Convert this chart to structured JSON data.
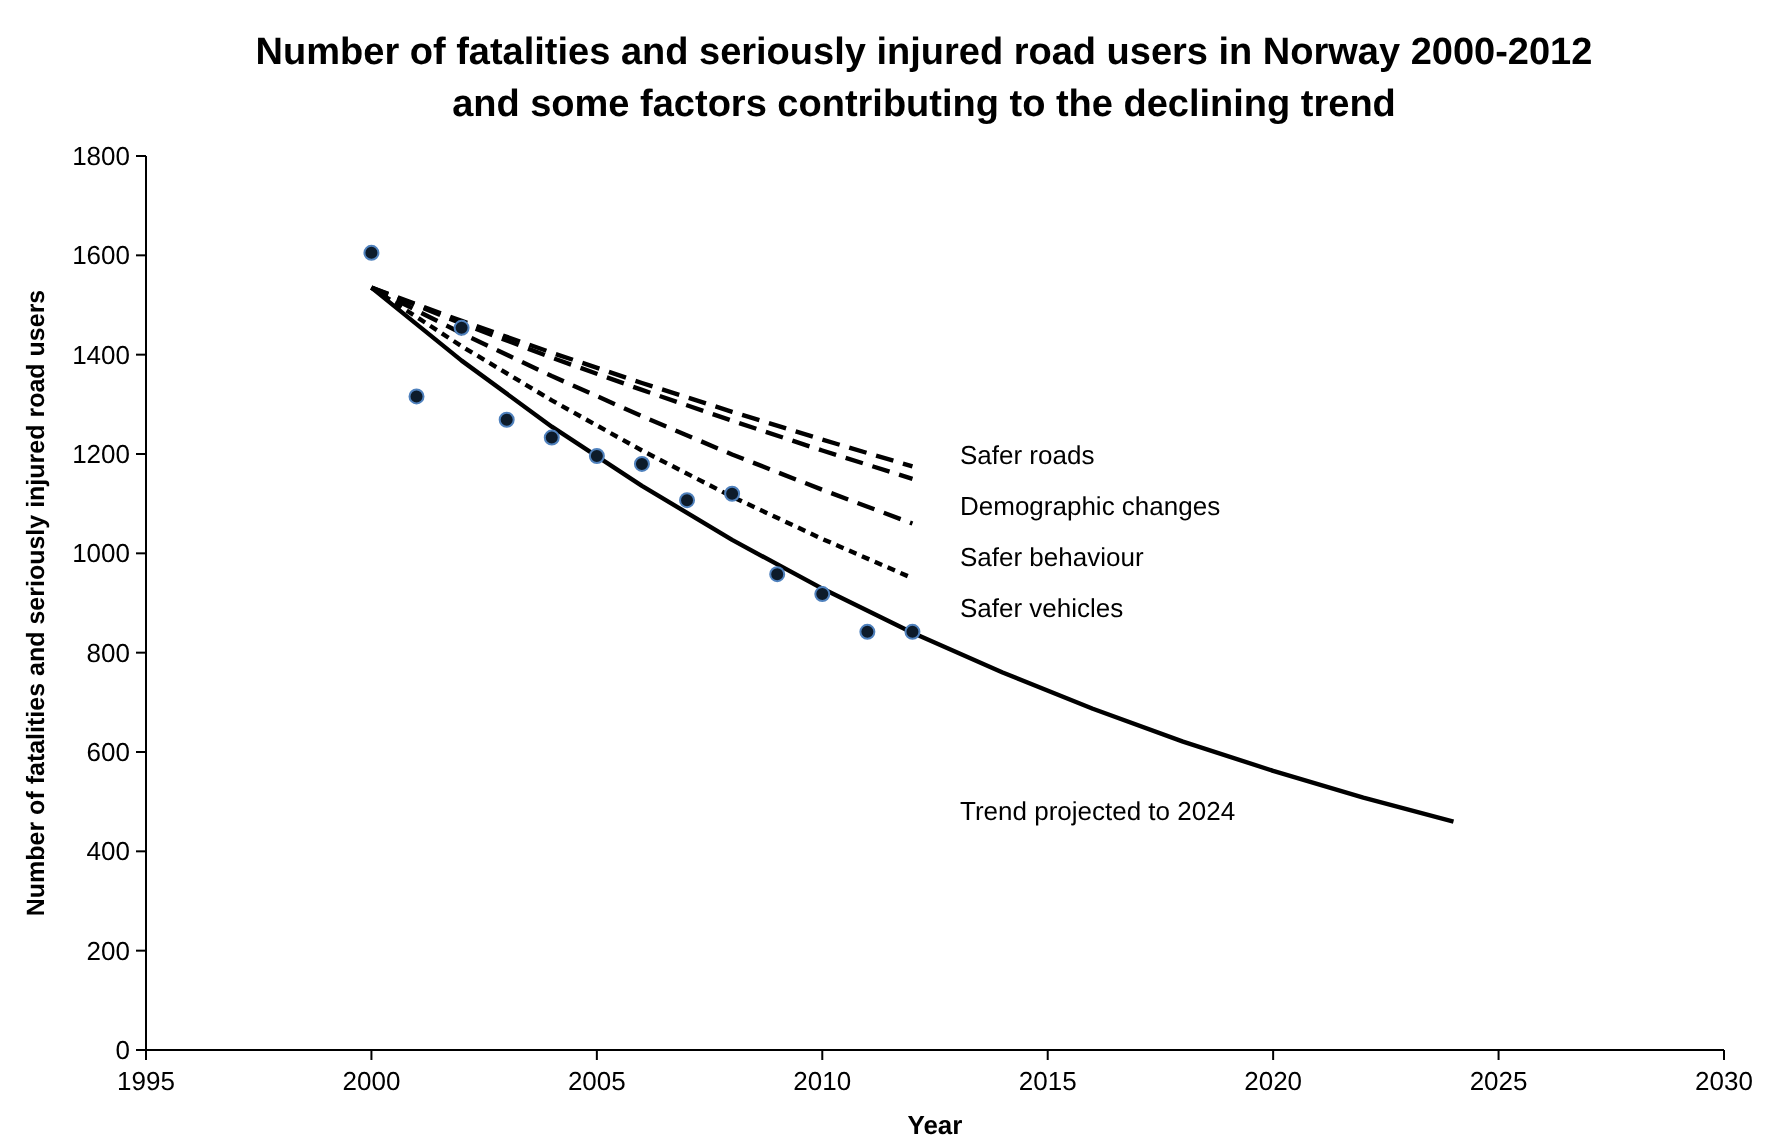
{
  "chart_data": {
    "type": "line",
    "title": "Number of fatalities and seriously injured road users in Norway 2000-2012\nand some factors contributing to the declining trend",
    "xlabel": "Year",
    "ylabel": "Number of fatalities and seriously injured road users",
    "xlim": [
      1995,
      2030
    ],
    "xticks": [
      1995,
      2000,
      2005,
      2010,
      2015,
      2020,
      2025,
      2030
    ],
    "ylim": [
      0,
      1800
    ],
    "yticks": [
      0,
      200,
      400,
      600,
      800,
      1000,
      1200,
      1400,
      1600,
      1800
    ],
    "grid": false,
    "series": [
      {
        "color": "#000000",
        "line_style": "dashed",
        "x": [
          2000,
          2002,
          2004,
          2006,
          2008,
          2010,
          2012
        ],
        "values": [
          1535,
          1468,
          1404,
          1343,
          1285,
          1229,
          1175
        ]
      },
      {
        "color": "#000000",
        "line_style": "dashed",
        "x": [
          2000,
          2002,
          2004,
          2006,
          2008,
          2010,
          2012
        ],
        "values": [
          1535,
          1463,
          1394,
          1329,
          1267,
          1207,
          1150
        ]
      },
      {
        "color": "#000000",
        "line_style": "dashed",
        "x": [
          2000,
          2002,
          2004,
          2006,
          2008,
          2010,
          2012
        ],
        "values": [
          1535,
          1443,
          1357,
          1276,
          1199,
          1128,
          1060
        ]
      },
      {
        "color": "#000000",
        "line_style": "dotted",
        "x": [
          2000,
          2002,
          2004,
          2006,
          2008,
          2010,
          2012
        ],
        "values": [
          1535,
          1417,
          1308,
          1207,
          1114,
          1029,
          950
        ]
      },
      {
        "color": "#000000",
        "line_style": "solid",
        "x": [
          2000,
          2002,
          2004,
          2006,
          2008,
          2010,
          2012,
          2014,
          2016,
          2018,
          2020,
          2022,
          2024
        ],
        "values": [
          1535,
          1388,
          1255,
          1136,
          1027,
          929,
          840,
          760,
          687,
          621,
          562,
          508,
          460
        ]
      },
      {
        "type": "scatter",
        "color": "#0d1b2a",
        "marker": "circle",
        "x": [
          2000,
          2001,
          2002,
          2003,
          2004,
          2005,
          2006,
          2007,
          2008,
          2009,
          2010,
          2011,
          2012
        ],
        "values": [
          1605,
          1316,
          1454,
          1269,
          1233,
          1196,
          1180,
          1107,
          1120,
          958,
          918,
          842,
          842
        ]
      }
    ],
    "annotations": [
      "Safer roads",
      "Demographic changes",
      "Safer behaviour",
      "Safer vehicles",
      "Trend projected to 2024"
    ]
  }
}
